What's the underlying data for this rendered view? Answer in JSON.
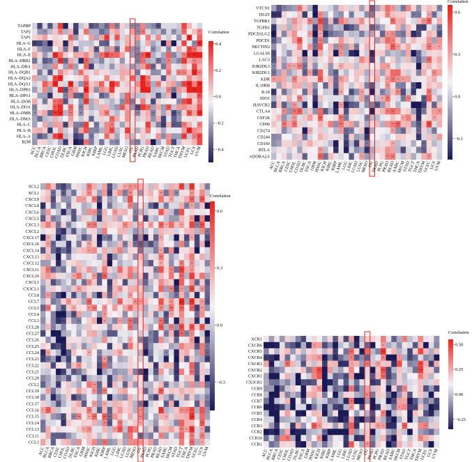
{
  "colors": {
    "high": "#e8221d",
    "mid": "#f4f2f6",
    "low": "#1c1a56",
    "highlight": "#e8221d"
  },
  "cancer_types": [
    "ACC",
    "BLCA",
    "BRCA",
    "CESC",
    "CHOL",
    "COAD",
    "DLBC",
    "ESCA",
    "GBM",
    "HNSC",
    "KICH",
    "KIRC",
    "KIRP",
    "LAML",
    "LGG",
    "LIHC",
    "LUAD",
    "LUSC",
    "MESO",
    "OV",
    "PAAD",
    "PCPG",
    "PRAD",
    "READ",
    "SARC",
    "SKCM",
    "STAD",
    "TGCT",
    "THCA",
    "THYM",
    "UCEC",
    "UCS",
    "UVM"
  ],
  "highlighted_column": "OV",
  "chart_data": [
    {
      "type": "heatmap",
      "colorbar_title": "Correlation",
      "colorbar_ticks": [
        "0.4",
        "0.2",
        "0.0",
        "−0.2",
        "−0.4"
      ],
      "colorbar_values": [
        0.4,
        0.2,
        0.0,
        -0.2,
        -0.4
      ],
      "clim": [
        -0.5,
        0.42
      ],
      "rows": [
        "TAPBP",
        "TAP2",
        "TAP1",
        "HLA–G",
        "HLA–F",
        "HLA–E",
        "HLA–DRB1",
        "HLA–DRA",
        "HLA–DQB1",
        "HLA–DQA2",
        "HLA–DQA1",
        "HLA–DPB1",
        "HLA–DPA1",
        "HLA–DOB",
        "HLA–DOA",
        "HLA–DMB",
        "HLA–DMA",
        "HLA–C",
        "HLA–B",
        "HLA–A",
        "B2M"
      ],
      "seed": 11
    },
    {
      "type": "heatmap",
      "colorbar_title": "Correlation",
      "colorbar_ticks": [
        "0.6",
        "0.3",
        "0.0",
        "−0.3"
      ],
      "colorbar_values": [
        0.6,
        0.3,
        0.0,
        -0.3
      ],
      "clim": [
        -0.45,
        0.65
      ],
      "rows": [
        "VTCN1",
        "TIGIT",
        "TGFBR1",
        "TGFB1",
        "PDCD1LG2",
        "PDCD1",
        "NECTIN2",
        "LGALS9",
        "LAG3",
        "KIR2DL3",
        "KIR2DL1",
        "KDR",
        "IL10RB",
        "IL10",
        "IDO1",
        "HAVCR2",
        "CTLA4",
        "CSF1R",
        "CD96",
        "CD274",
        "CD244",
        "CD160",
        "BTLA",
        "ADORA2A"
      ],
      "seed": 23
    },
    {
      "type": "heatmap",
      "colorbar_title": "Correlation",
      "colorbar_ticks": [
        "0.6",
        "0.3",
        "0.0",
        "−0.3"
      ],
      "colorbar_values": [
        0.6,
        0.3,
        0.0,
        -0.3
      ],
      "clim": [
        -0.45,
        0.65
      ],
      "rows": [
        "XCL2",
        "XCL1",
        "CXCL9",
        "CXCL8",
        "CXCL6",
        "CXCL5",
        "CXCL3",
        "CXCL2",
        "CXCL17",
        "CXCL16",
        "CXCL14",
        "CXCL13",
        "CXCL12",
        "CXCL11",
        "CXCL10",
        "CXCL1",
        "CX3CL1",
        "CCL8",
        "CCL7",
        "CCL5",
        "CCL4",
        "CCL3",
        "CCL28",
        "CCL27",
        "CCL26",
        "CCL25",
        "CCL24",
        "CCL23",
        "CCL22",
        "CCL21",
        "CCL20",
        "CCL2",
        "CCL19",
        "CCL18",
        "CCL17",
        "CCL16",
        "CCL15",
        "CCL14",
        "CCL13",
        "CCL11",
        "CCL1"
      ],
      "seed": 37
    },
    {
      "type": "heatmap",
      "colorbar_title": "Correlation",
      "colorbar_ticks": [
        "0.50",
        "0.25",
        "0.00",
        "−0.25"
      ],
      "colorbar_values": [
        0.5,
        0.25,
        0.0,
        -0.25
      ],
      "clim": [
        -0.35,
        0.55
      ],
      "rows": [
        "XCR1",
        "CXCR6",
        "CXCR5",
        "CXCR4",
        "CXCR3",
        "CXCR2",
        "CXCR1",
        "CX3CR1",
        "CCR9",
        "CCR8",
        "CCR7",
        "CCR6",
        "CCR5",
        "CCR4",
        "CCR3",
        "CCR2",
        "CCR10",
        "CCR1"
      ],
      "seed": 53
    }
  ]
}
